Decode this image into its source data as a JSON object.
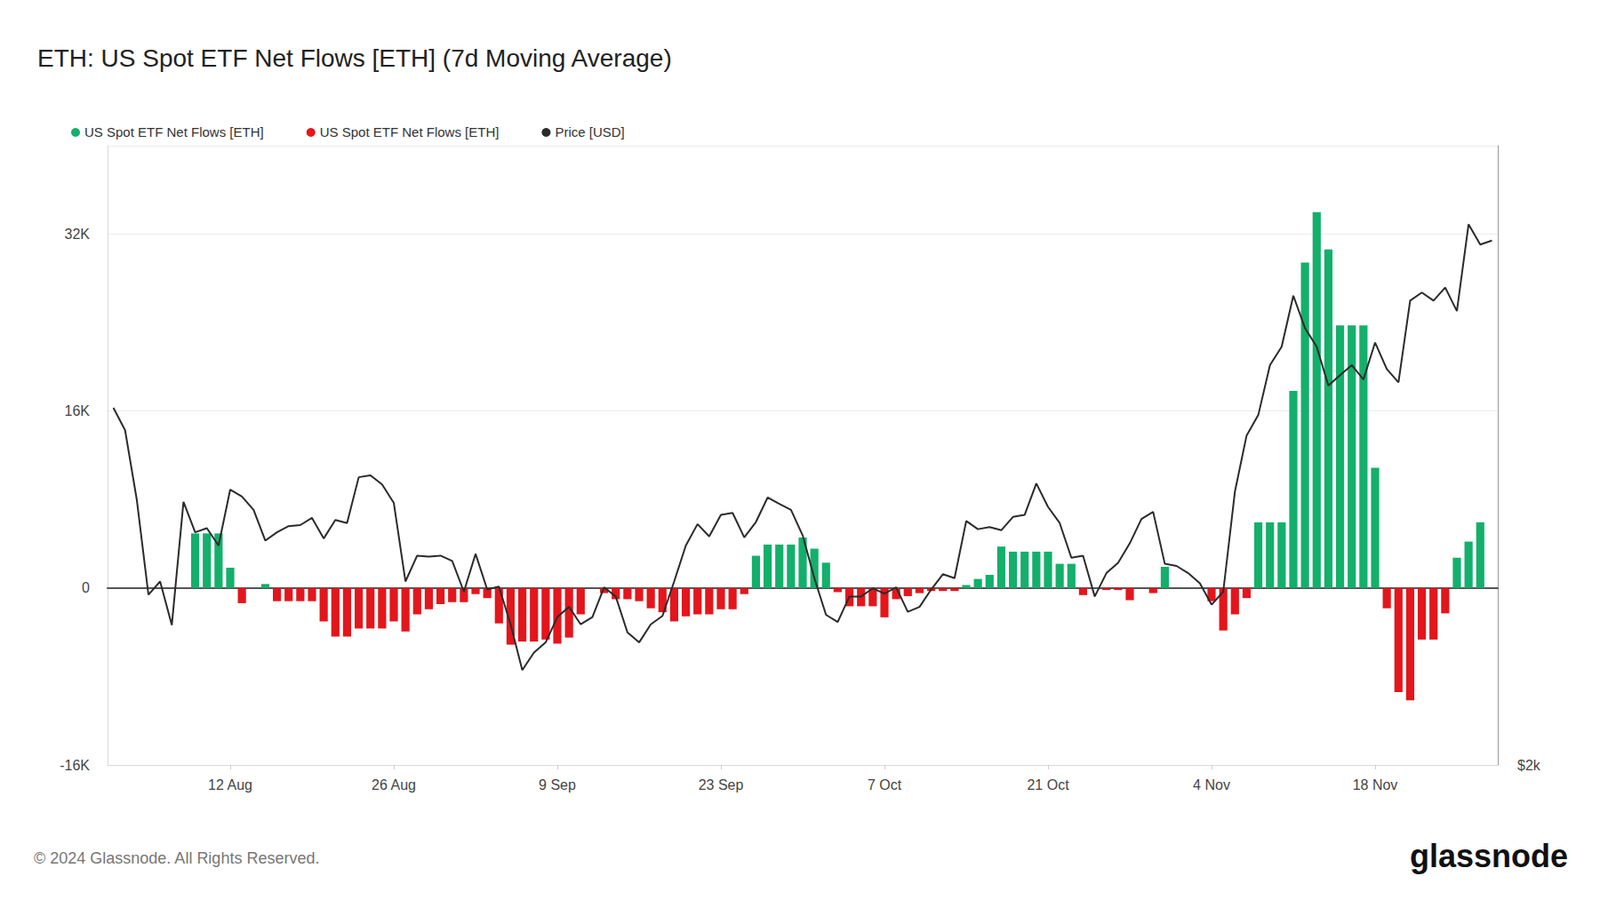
{
  "chart_data": {
    "type": "bar",
    "title": "ETH: US Spot ETF Net Flows [ETH] (7d Moving Average)",
    "footer": "© 2024 Glassnode. All Rights Reserved.",
    "brand": "glassnode",
    "grid": true,
    "log": "y2",
    "categories": [
      null,
      null,
      null,
      null,
      null,
      null,
      null,
      null,
      null,
      null,
      "12 Aug",
      null,
      null,
      null,
      null,
      null,
      null,
      null,
      null,
      null,
      null,
      null,
      null,
      null,
      "26 Aug",
      null,
      null,
      null,
      null,
      null,
      null,
      null,
      null,
      null,
      null,
      null,
      null,
      null,
      "9 Sep",
      null,
      null,
      null,
      null,
      null,
      null,
      null,
      null,
      null,
      null,
      null,
      null,
      null,
      "23 Sep",
      null,
      null,
      null,
      null,
      null,
      null,
      null,
      null,
      null,
      null,
      null,
      null,
      null,
      "7 Oct",
      null,
      null,
      null,
      null,
      null,
      null,
      null,
      null,
      null,
      null,
      null,
      null,
      null,
      "21 Oct",
      null,
      null,
      null,
      null,
      null,
      null,
      null,
      null,
      null,
      null,
      null,
      null,
      null,
      "4 Nov",
      null,
      null,
      null,
      null,
      null,
      null,
      null,
      null,
      null,
      null,
      null,
      null,
      null,
      "18 Nov",
      null,
      null,
      null,
      null,
      null,
      null,
      null,
      null,
      null,
      null
    ],
    "ylim": [
      -16000,
      40000
    ],
    "yticks": [
      {
        "value": -16000,
        "label": "-16K"
      },
      0,
      {
        "value": 16000,
        "label": "16K"
      },
      {
        "value": 32000,
        "label": "32K"
      }
    ],
    "y2lim": [
      2000,
      4000
    ],
    "y2ticks": [
      {
        "value": 2000,
        "label": "$2k"
      }
    ],
    "series": [
      {
        "name": "US Spot ETF Net Flows [ETH]",
        "type": "bar",
        "color": "#13b06b",
        "values": [
          null,
          null,
          null,
          null,
          null,
          null,
          null,
          4940,
          4940,
          4940,
          1830,
          null,
          null,
          365,
          null,
          null,
          null,
          null,
          null,
          null,
          null,
          null,
          null,
          null,
          null,
          null,
          null,
          null,
          null,
          null,
          null,
          null,
          null,
          null,
          null,
          null,
          null,
          null,
          null,
          null,
          null,
          null,
          null,
          null,
          null,
          null,
          null,
          null,
          null,
          null,
          null,
          null,
          null,
          null,
          null,
          2920,
          3930,
          3930,
          3930,
          4570,
          3560,
          2290,
          null,
          null,
          null,
          null,
          null,
          null,
          null,
          null,
          null,
          null,
          null,
          270,
          820,
          1190,
          3750,
          3290,
          3290,
          3290,
          3290,
          2190,
          2190,
          null,
          null,
          null,
          null,
          null,
          null,
          null,
          1920,
          null,
          null,
          null,
          null,
          null,
          null,
          null,
          5940,
          5940,
          5940,
          17820,
          29430,
          34000,
          30620,
          23760,
          23760,
          23760,
          10880,
          null,
          null,
          null,
          null,
          null,
          null,
          2740,
          4200,
          5940,
          null
        ]
      },
      {
        "name": "US Spot ETF Net Flows [ETH]",
        "type": "bar",
        "color": "#e3161c",
        "values": [
          null,
          null,
          null,
          null,
          null,
          null,
          null,
          null,
          null,
          null,
          null,
          -1370,
          null,
          null,
          -1190,
          -1190,
          -1190,
          -1190,
          -3020,
          -4390,
          -4390,
          -3660,
          -3660,
          -3660,
          -3020,
          -3930,
          -2380,
          -1920,
          -1460,
          -1280,
          -1280,
          -550,
          -910,
          -3200,
          -5120,
          -4840,
          -4840,
          -4660,
          -5030,
          -4480,
          -2380,
          null,
          -460,
          -1010,
          -1010,
          -1190,
          -1830,
          -2190,
          -3020,
          -2560,
          -2380,
          -2380,
          -1920,
          -1920,
          -550,
          null,
          null,
          null,
          null,
          null,
          null,
          null,
          -370,
          -1650,
          -1650,
          -1650,
          -2650,
          -1010,
          -730,
          -460,
          -270,
          -270,
          -270,
          null,
          null,
          null,
          null,
          null,
          null,
          null,
          null,
          null,
          null,
          -640,
          null,
          -180,
          -180,
          -1100,
          null,
          -460,
          null,
          null,
          null,
          null,
          -1190,
          -3840,
          -2380,
          -910,
          null,
          null,
          null,
          null,
          null,
          null,
          null,
          null,
          null,
          null,
          null,
          -1830,
          -9410,
          -10150,
          -4660,
          -4660,
          -2290,
          null,
          null,
          null,
          null
        ]
      },
      {
        "name": "Price [USD]",
        "type": "line",
        "axis": "y2",
        "color": "#2b2b2b",
        "values": [
          2983,
          2909,
          2692,
          2420,
          2456,
          2339,
          2685,
          2595,
          2607,
          2557,
          2722,
          2701,
          2661,
          2571,
          2595,
          2613,
          2616,
          2637,
          2577,
          2631,
          2622,
          2760,
          2766,
          2738,
          2682,
          2456,
          2528,
          2525,
          2528,
          2513,
          2428,
          2533,
          2434,
          2442,
          2341,
          2224,
          2268,
          2294,
          2360,
          2387,
          2341,
          2360,
          2440,
          2415,
          2320,
          2294,
          2341,
          2363,
          2456,
          2557,
          2619,
          2583,
          2646,
          2652,
          2580,
          2625,
          2698,
          2679,
          2661,
          2586,
          2465,
          2366,
          2347,
          2415,
          2415,
          2437,
          2423,
          2440,
          2374,
          2387,
          2434,
          2476,
          2465,
          2628,
          2604,
          2610,
          2601,
          2640,
          2646,
          2741,
          2670,
          2622,
          2522,
          2528,
          2415,
          2479,
          2508,
          2563,
          2634,
          2655,
          2505,
          2499,
          2479,
          2451,
          2393,
          2428,
          2716,
          2892,
          2959,
          3129,
          3194,
          3382,
          3261,
          3194,
          3058,
          3094,
          3129,
          3079,
          3209,
          3115,
          3069,
          3363,
          3394,
          3363,
          3413,
          3324,
          3663,
          3581,
          3597
        ]
      }
    ]
  }
}
